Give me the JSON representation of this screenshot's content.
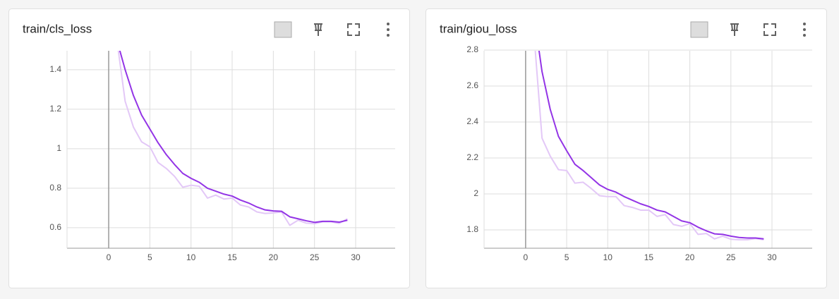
{
  "chart_data": [
    {
      "type": "line",
      "title": "train/cls_loss",
      "x": [
        1,
        2,
        3,
        4,
        5,
        6,
        7,
        8,
        9,
        10,
        11,
        12,
        13,
        14,
        15,
        16,
        17,
        18,
        19,
        20,
        21,
        22,
        23,
        24,
        25,
        26,
        27,
        28,
        29
      ],
      "series": [
        {
          "color": "#e3c8f7",
          "values": [
            1.55,
            1.24,
            1.11,
            1.035,
            1.01,
            0.93,
            0.9,
            0.86,
            0.805,
            0.815,
            0.81,
            0.75,
            0.765,
            0.745,
            0.75,
            0.715,
            0.705,
            0.68,
            0.672,
            0.675,
            0.68,
            0.612,
            0.638,
            0.623,
            0.62,
            0.63,
            0.63,
            0.622,
            0.645
          ]
        },
        {
          "color": "#9334e6",
          "values": [
            1.55,
            1.4,
            1.27,
            1.17,
            1.1,
            1.03,
            0.97,
            0.92,
            0.875,
            0.85,
            0.83,
            0.8,
            0.785,
            0.77,
            0.76,
            0.74,
            0.725,
            0.705,
            0.69,
            0.685,
            0.683,
            0.655,
            0.645,
            0.635,
            0.627,
            0.632,
            0.632,
            0.628,
            0.638
          ]
        }
      ],
      "xlim": [
        -5.06,
        34.8
      ],
      "xticks": [
        0,
        5,
        10,
        15,
        20,
        25,
        30
      ],
      "ylim": [
        0.496,
        1.496
      ],
      "yticks": [
        0.6,
        0.8,
        1,
        1.2,
        1.4
      ],
      "grid": true
    },
    {
      "type": "line",
      "title": "train/giou_loss",
      "x": [
        1,
        2,
        3,
        4,
        5,
        6,
        7,
        8,
        9,
        10,
        11,
        12,
        13,
        14,
        15,
        16,
        17,
        18,
        19,
        20,
        21,
        22,
        23,
        24,
        25,
        26,
        27,
        28,
        29
      ],
      "series": [
        {
          "color": "#e3c8f7",
          "values": [
            2.9,
            2.31,
            2.21,
            2.135,
            2.13,
            2.06,
            2.065,
            2.03,
            1.99,
            1.985,
            1.985,
            1.935,
            1.925,
            1.91,
            1.91,
            1.875,
            1.885,
            1.83,
            1.82,
            1.835,
            1.775,
            1.78,
            1.75,
            1.765,
            1.748,
            1.745,
            1.745,
            1.752,
            1.745
          ]
        },
        {
          "color": "#9334e6",
          "values": [
            3.0,
            2.68,
            2.47,
            2.32,
            2.24,
            2.165,
            2.13,
            2.09,
            2.05,
            2.025,
            2.01,
            1.985,
            1.965,
            1.945,
            1.93,
            1.91,
            1.9,
            1.875,
            1.85,
            1.84,
            1.815,
            1.795,
            1.778,
            1.775,
            1.765,
            1.758,
            1.755,
            1.755,
            1.75
          ]
        }
      ],
      "xlim": [
        -5.06,
        34.9
      ],
      "xticks": [
        0,
        5,
        10,
        15,
        20,
        25,
        30
      ],
      "ylim": [
        1.698,
        2.796
      ],
      "yticks": [
        1.8,
        2,
        2.2,
        2.4,
        2.6,
        2.8
      ],
      "grid": true
    }
  ]
}
